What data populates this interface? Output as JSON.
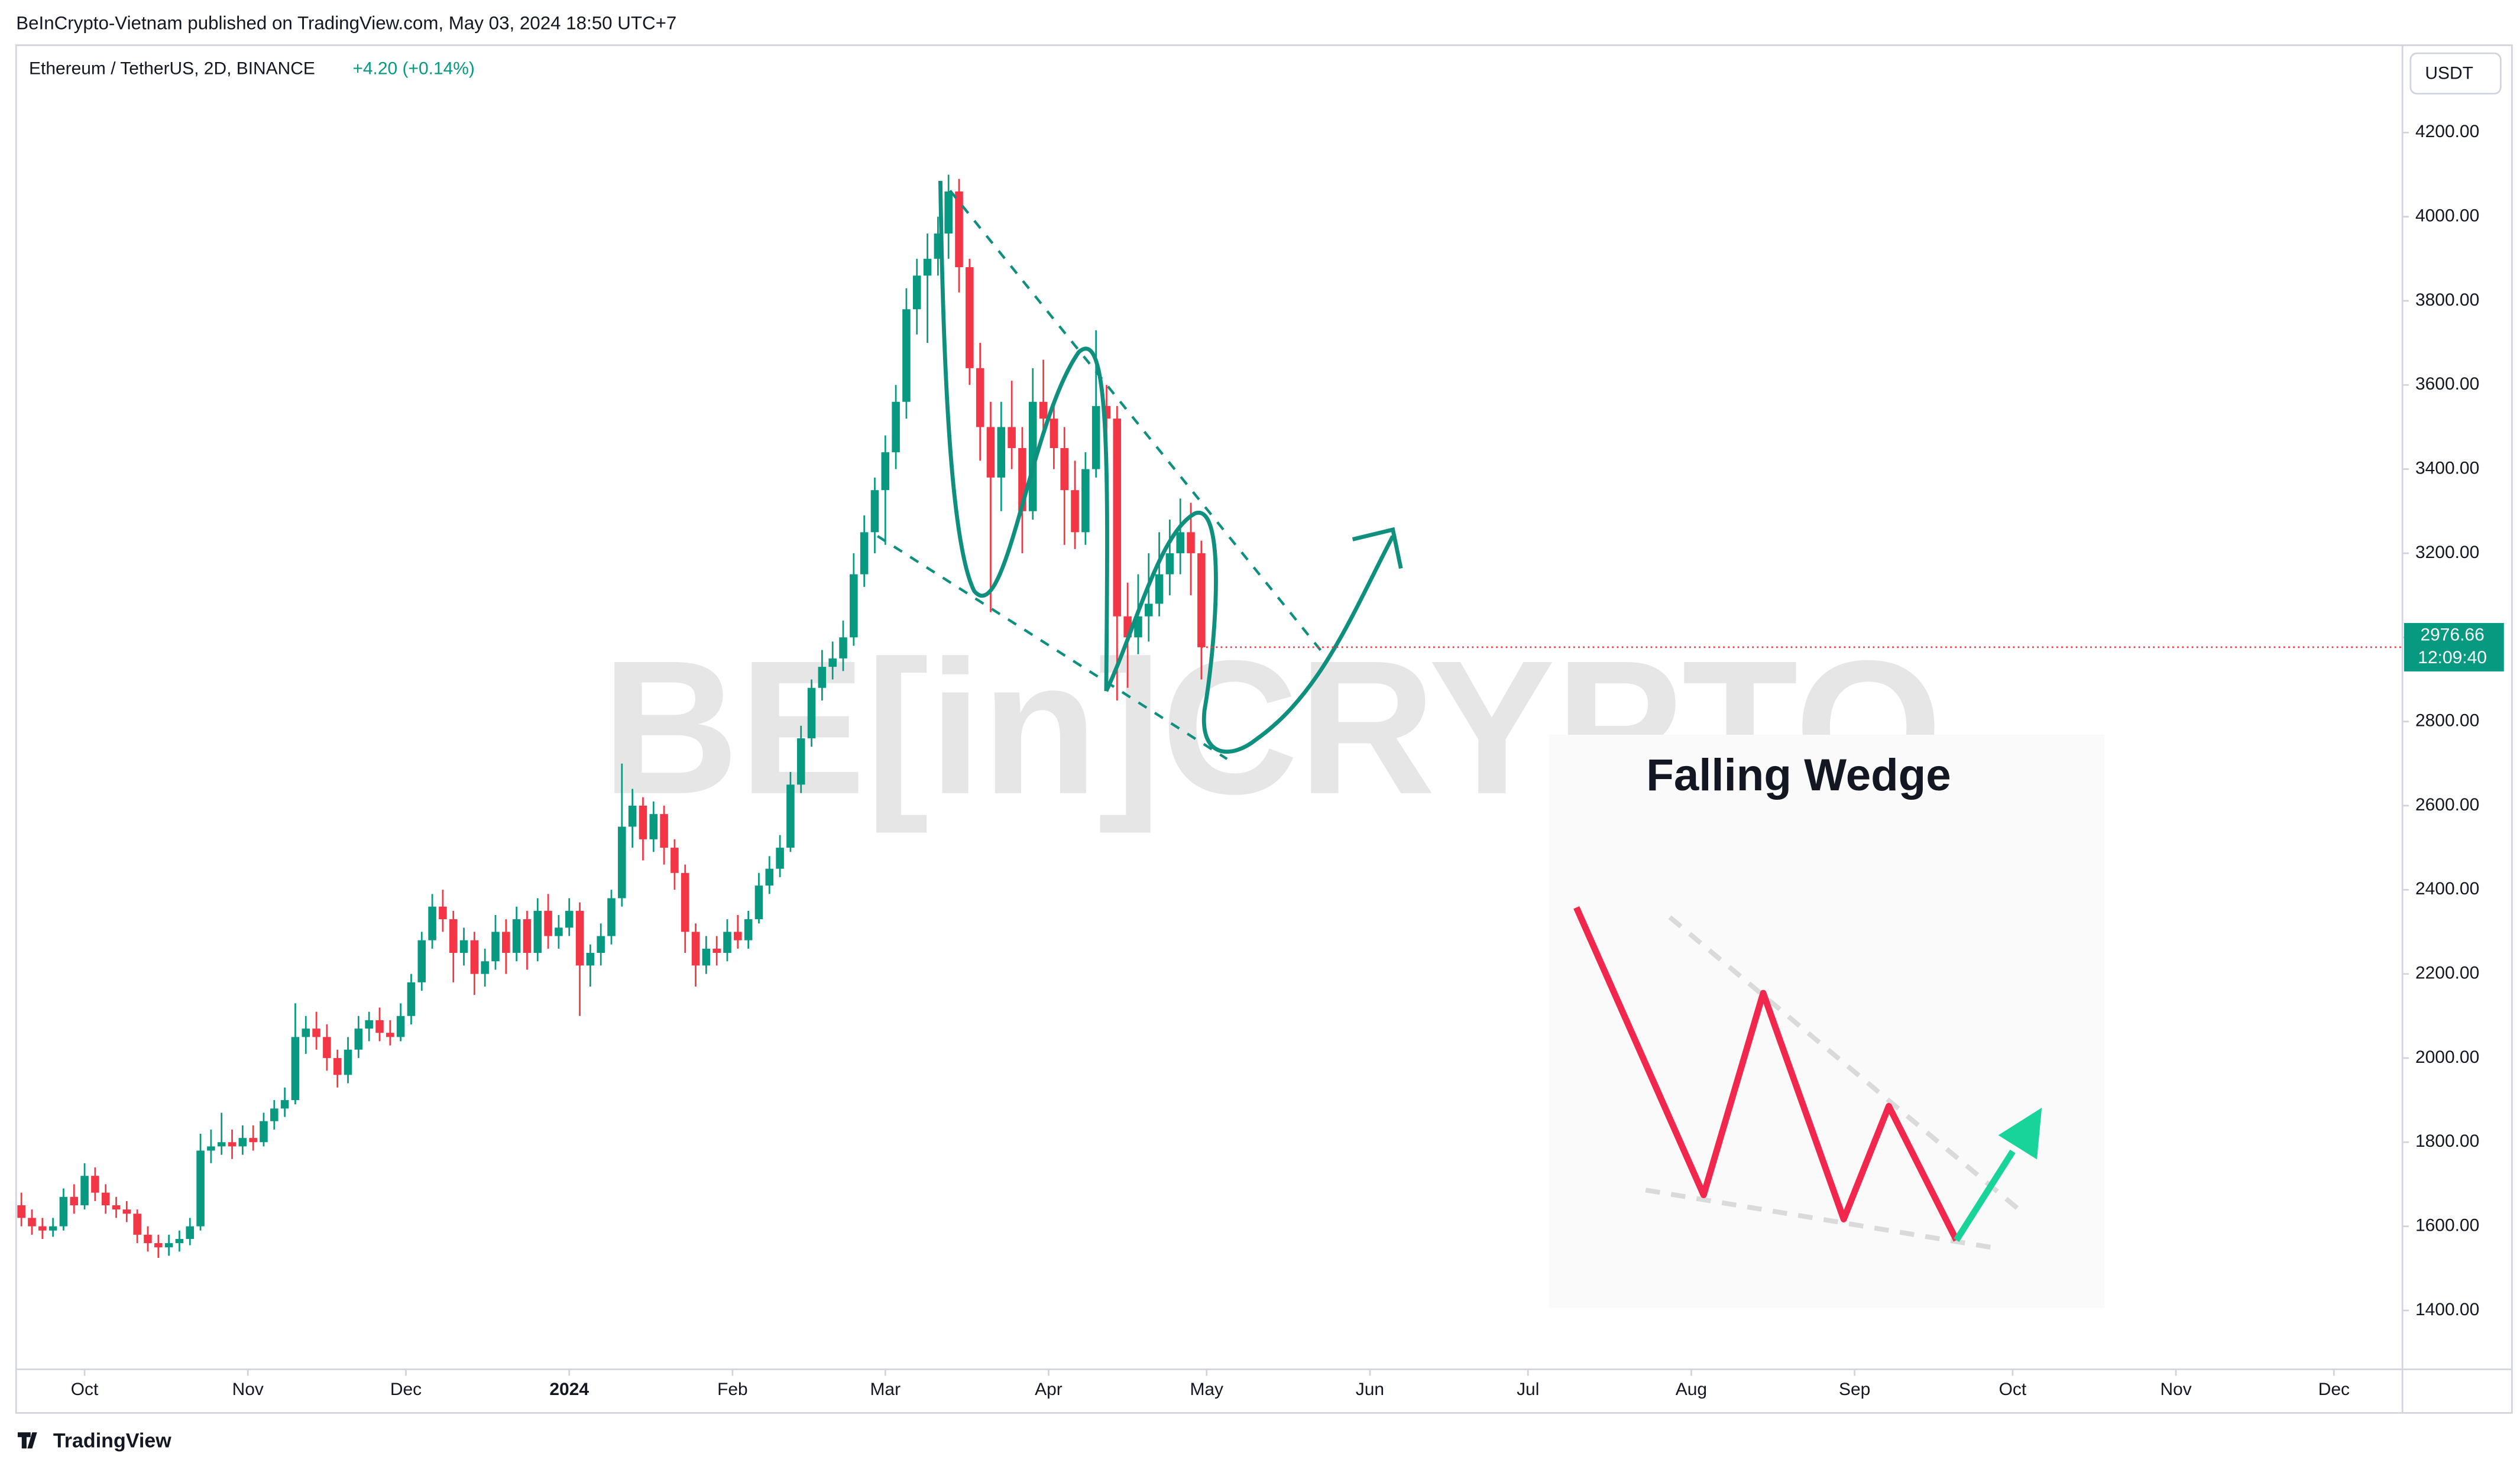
{
  "header": {
    "published": "BeInCrypto-Vietnam published on TradingView.com, May 03, 2024 18:50 UTC+7"
  },
  "chart_data": {
    "type": "candlestick",
    "symbol": "Ethereum / TetherUS, 2D, BINANCE",
    "change": "+4.20 (+0.14%)",
    "currency": "USDT",
    "countdown": "12:09:40",
    "watermark": "BE[in]CRYPTO",
    "annotations": [
      "Falling Wedge"
    ],
    "up_color": "#089981",
    "down_color": "#f23645",
    "ylim": [
      1260,
      4400
    ],
    "yticks": [
      {
        "value": 1400,
        "label": "1400.00"
      },
      {
        "value": 1600,
        "label": "1600.00"
      },
      {
        "value": 1800,
        "label": "1800.00"
      },
      {
        "value": 2000,
        "label": "2000.00"
      },
      {
        "value": 2200,
        "label": "2200.00"
      },
      {
        "value": 2400,
        "label": "2400.00"
      },
      {
        "value": 2600,
        "label": "2600.00"
      },
      {
        "value": 2800,
        "label": "2800.00"
      },
      {
        "value": 3000,
        "label": "3000.00"
      },
      {
        "value": 3200,
        "label": "3200.00"
      },
      {
        "value": 3400,
        "label": "3400.00"
      },
      {
        "value": 3600,
        "label": "3600.00"
      },
      {
        "value": 3800,
        "label": "3800.00"
      },
      {
        "value": 4000,
        "label": "4000.00"
      },
      {
        "value": 4200,
        "label": "4200.00"
      }
    ],
    "xlim": [
      -0.5,
      226
    ],
    "xticks": [
      {
        "value": 6,
        "label": "Oct"
      },
      {
        "value": 21.5,
        "label": "Nov"
      },
      {
        "value": 36.5,
        "label": "Dec"
      },
      {
        "value": 52,
        "label": "2024"
      },
      {
        "value": 67.5,
        "label": "Feb"
      },
      {
        "value": 82,
        "label": "Mar"
      },
      {
        "value": 97.5,
        "label": "Apr"
      },
      {
        "value": 112.5,
        "label": "May"
      },
      {
        "value": 128,
        "label": "Jun"
      },
      {
        "value": 143,
        "label": "Jul"
      },
      {
        "value": 158.5,
        "label": "Aug"
      },
      {
        "value": 174,
        "label": "Sep"
      },
      {
        "value": 189,
        "label": "Oct"
      },
      {
        "value": 204.5,
        "label": "Nov"
      },
      {
        "value": 219.5,
        "label": "Dec"
      }
    ],
    "ohlc": [
      [
        1650,
        1680,
        1600,
        1620
      ],
      [
        1620,
        1640,
        1580,
        1600
      ],
      [
        1600,
        1620,
        1570,
        1590
      ],
      [
        1590,
        1620,
        1575,
        1600
      ],
      [
        1600,
        1690,
        1590,
        1670
      ],
      [
        1670,
        1700,
        1630,
        1650
      ],
      [
        1650,
        1750,
        1640,
        1720
      ],
      [
        1720,
        1740,
        1660,
        1680
      ],
      [
        1680,
        1700,
        1630,
        1650
      ],
      [
        1650,
        1670,
        1620,
        1640
      ],
      [
        1640,
        1660,
        1610,
        1630
      ],
      [
        1630,
        1640,
        1560,
        1580
      ],
      [
        1580,
        1600,
        1540,
        1560
      ],
      [
        1560,
        1580,
        1525,
        1550
      ],
      [
        1550,
        1580,
        1530,
        1560
      ],
      [
        1560,
        1590,
        1540,
        1570
      ],
      [
        1570,
        1620,
        1555,
        1600
      ],
      [
        1600,
        1820,
        1590,
        1780
      ],
      [
        1780,
        1830,
        1750,
        1790
      ],
      [
        1790,
        1870,
        1770,
        1800
      ],
      [
        1800,
        1830,
        1760,
        1790
      ],
      [
        1790,
        1840,
        1770,
        1810
      ],
      [
        1810,
        1840,
        1780,
        1800
      ],
      [
        1800,
        1870,
        1790,
        1850
      ],
      [
        1850,
        1900,
        1830,
        1880
      ],
      [
        1880,
        1930,
        1860,
        1900
      ],
      [
        1900,
        2130,
        1890,
        2050
      ],
      [
        2050,
        2100,
        2010,
        2070
      ],
      [
        2070,
        2110,
        2020,
        2050
      ],
      [
        2050,
        2080,
        1970,
        2000
      ],
      [
        2000,
        2020,
        1930,
        1960
      ],
      [
        1960,
        2050,
        1940,
        2020
      ],
      [
        2020,
        2100,
        2000,
        2070
      ],
      [
        2070,
        2110,
        2040,
        2090
      ],
      [
        2090,
        2120,
        2040,
        2060
      ],
      [
        2060,
        2090,
        2030,
        2050
      ],
      [
        2050,
        2130,
        2040,
        2100
      ],
      [
        2100,
        2200,
        2080,
        2180
      ],
      [
        2180,
        2300,
        2160,
        2280
      ],
      [
        2280,
        2390,
        2260,
        2360
      ],
      [
        2360,
        2400,
        2300,
        2330
      ],
      [
        2330,
        2350,
        2180,
        2250
      ],
      [
        2250,
        2310,
        2220,
        2280
      ],
      [
        2280,
        2300,
        2150,
        2200
      ],
      [
        2200,
        2260,
        2170,
        2230
      ],
      [
        2230,
        2340,
        2210,
        2300
      ],
      [
        2300,
        2330,
        2200,
        2250
      ],
      [
        2250,
        2360,
        2230,
        2330
      ],
      [
        2330,
        2350,
        2210,
        2250
      ],
      [
        2250,
        2380,
        2230,
        2350
      ],
      [
        2350,
        2390,
        2260,
        2290
      ],
      [
        2290,
        2340,
        2260,
        2310
      ],
      [
        2310,
        2380,
        2290,
        2350
      ],
      [
        2350,
        2370,
        2100,
        2220
      ],
      [
        2220,
        2270,
        2170,
        2250
      ],
      [
        2250,
        2320,
        2220,
        2290
      ],
      [
        2290,
        2400,
        2270,
        2380
      ],
      [
        2380,
        2700,
        2360,
        2550
      ],
      [
        2550,
        2640,
        2500,
        2600
      ],
      [
        2600,
        2620,
        2470,
        2520
      ],
      [
        2520,
        2610,
        2490,
        2580
      ],
      [
        2580,
        2600,
        2460,
        2500
      ],
      [
        2500,
        2520,
        2400,
        2440
      ],
      [
        2440,
        2460,
        2250,
        2300
      ],
      [
        2300,
        2320,
        2170,
        2220
      ],
      [
        2220,
        2290,
        2200,
        2260
      ],
      [
        2260,
        2290,
        2220,
        2250
      ],
      [
        2250,
        2330,
        2230,
        2300
      ],
      [
        2300,
        2340,
        2260,
        2280
      ],
      [
        2280,
        2350,
        2260,
        2330
      ],
      [
        2330,
        2440,
        2320,
        2410
      ],
      [
        2410,
        2480,
        2390,
        2450
      ],
      [
        2450,
        2530,
        2430,
        2500
      ],
      [
        2500,
        2680,
        2490,
        2650
      ],
      [
        2650,
        2790,
        2630,
        2760
      ],
      [
        2760,
        2900,
        2740,
        2880
      ],
      [
        2880,
        2970,
        2850,
        2930
      ],
      [
        2930,
        2990,
        2900,
        2950
      ],
      [
        2950,
        3040,
        2920,
        3000
      ],
      [
        3000,
        3200,
        2980,
        3150
      ],
      [
        3150,
        3290,
        3120,
        3250
      ],
      [
        3250,
        3380,
        3200,
        3350
      ],
      [
        3350,
        3480,
        3220,
        3440
      ],
      [
        3440,
        3600,
        3400,
        3560
      ],
      [
        3560,
        3830,
        3520,
        3780
      ],
      [
        3780,
        3900,
        3720,
        3860
      ],
      [
        3860,
        3960,
        3700,
        3900
      ],
      [
        3900,
        4000,
        3860,
        3960
      ],
      [
        3960,
        4100,
        3900,
        4060
      ],
      [
        4060,
        4090,
        3820,
        3880
      ],
      [
        3880,
        3900,
        3600,
        3640
      ],
      [
        3640,
        3700,
        3420,
        3500
      ],
      [
        3500,
        3560,
        3060,
        3380
      ],
      [
        3380,
        3560,
        3300,
        3500
      ],
      [
        3500,
        3610,
        3400,
        3450
      ],
      [
        3450,
        3500,
        3200,
        3300
      ],
      [
        3300,
        3640,
        3280,
        3560
      ],
      [
        3560,
        3660,
        3480,
        3520
      ],
      [
        3520,
        3560,
        3400,
        3450
      ],
      [
        3450,
        3500,
        3220,
        3350
      ],
      [
        3350,
        3420,
        3210,
        3250
      ],
      [
        3250,
        3440,
        3220,
        3400
      ],
      [
        3400,
        3730,
        3380,
        3550
      ],
      [
        3550,
        3600,
        3450,
        3520
      ],
      [
        3520,
        3550,
        2850,
        3050
      ],
      [
        3050,
        3130,
        2880,
        3000
      ],
      [
        3000,
        3150,
        2960,
        3050
      ],
      [
        3050,
        3200,
        2990,
        3080
      ],
      [
        3080,
        3250,
        3050,
        3150
      ],
      [
        3150,
        3280,
        3100,
        3200
      ],
      [
        3200,
        3330,
        3150,
        3250
      ],
      [
        3250,
        3320,
        3100,
        3200
      ],
      [
        3200,
        3230,
        2900,
        2976.66
      ]
    ]
  },
  "footer": {
    "brand": "TradingView"
  }
}
